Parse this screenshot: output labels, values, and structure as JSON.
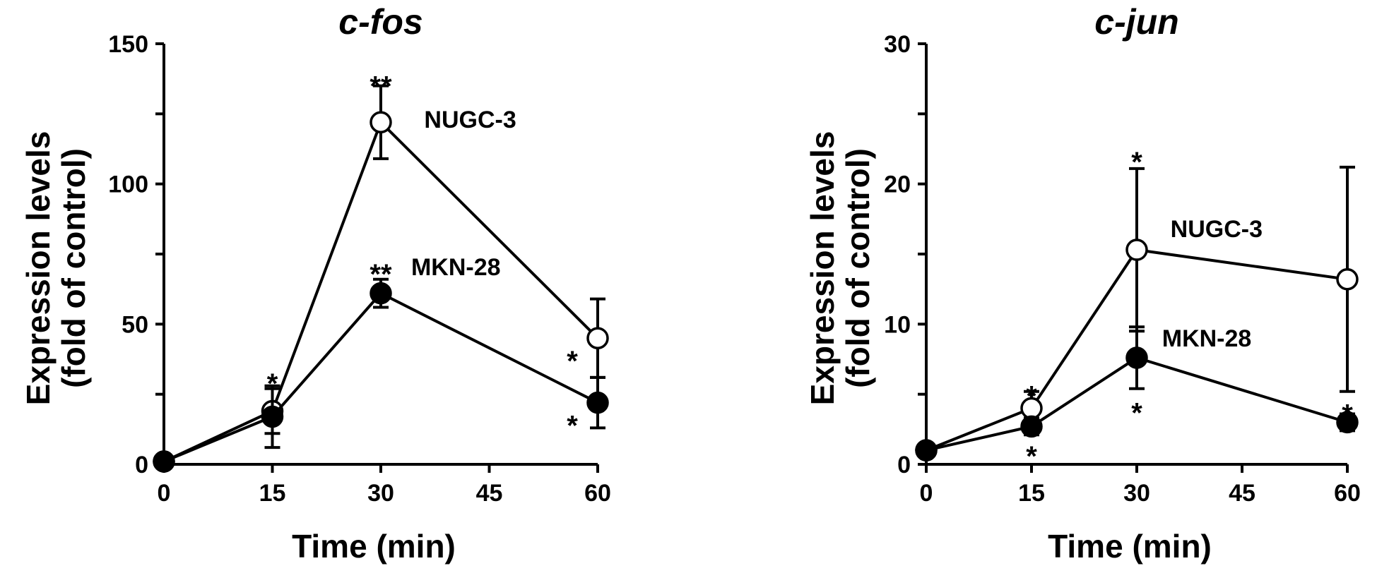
{
  "chart_data": [
    {
      "type": "line",
      "title": "c-fos",
      "xlabel": "Time (min)",
      "ylabel_lines": [
        "Expression levels",
        "(fold of control)"
      ],
      "xlim": [
        0,
        60
      ],
      "ylim": [
        0,
        150
      ],
      "xticks": [
        0,
        15,
        30,
        45,
        60
      ],
      "yticks": [
        0,
        50,
        100,
        150
      ],
      "x": [
        0,
        15,
        30,
        60
      ],
      "series": [
        {
          "name": "NUGC-3",
          "marker": "open-circle",
          "values": [
            1,
            19,
            122,
            45
          ],
          "errors": [
            0,
            8,
            13,
            14
          ]
        },
        {
          "name": "MKN-28",
          "marker": "filled-circle",
          "values": [
            1,
            17,
            61,
            22
          ],
          "errors": [
            0,
            11,
            5,
            9
          ]
        }
      ],
      "annotations": [
        {
          "x": 15,
          "y": 32,
          "text": "*"
        },
        {
          "x": 30,
          "y": 138,
          "text": "**"
        },
        {
          "x": 30,
          "y": 71,
          "text": "**"
        },
        {
          "x": 60,
          "y": 40,
          "text": "*"
        },
        {
          "x": 60,
          "y": 17,
          "text": "*"
        }
      ]
    },
    {
      "type": "line",
      "title": "c-jun",
      "xlabel": "Time (min)",
      "ylabel_lines": [
        "Expression levels",
        "(fold of control)"
      ],
      "xlim": [
        0,
        60
      ],
      "ylim": [
        0,
        30
      ],
      "xticks": [
        0,
        15,
        30,
        45,
        60
      ],
      "yticks": [
        0,
        10,
        20,
        30
      ],
      "x": [
        0,
        15,
        30,
        60
      ],
      "series": [
        {
          "name": "NUGC-3",
          "marker": "open-circle",
          "values": [
            1,
            4,
            15.3,
            13.2
          ],
          "errors": [
            0,
            1.2,
            5.8,
            8
          ]
        },
        {
          "name": "MKN-28",
          "marker": "filled-circle",
          "values": [
            1,
            2.7,
            7.6,
            3
          ],
          "errors": [
            0,
            0.6,
            2.2,
            0.6
          ]
        }
      ],
      "annotations": [
        {
          "x": 15,
          "y": 5.5,
          "text": "*"
        },
        {
          "x": 15,
          "y": 1.2,
          "text": "*"
        },
        {
          "x": 30,
          "y": 22.2,
          "text": "*"
        },
        {
          "x": 30,
          "y": 4.3,
          "text": "*"
        },
        {
          "x": 60,
          "y": 4.2,
          "text": "*"
        }
      ]
    }
  ]
}
